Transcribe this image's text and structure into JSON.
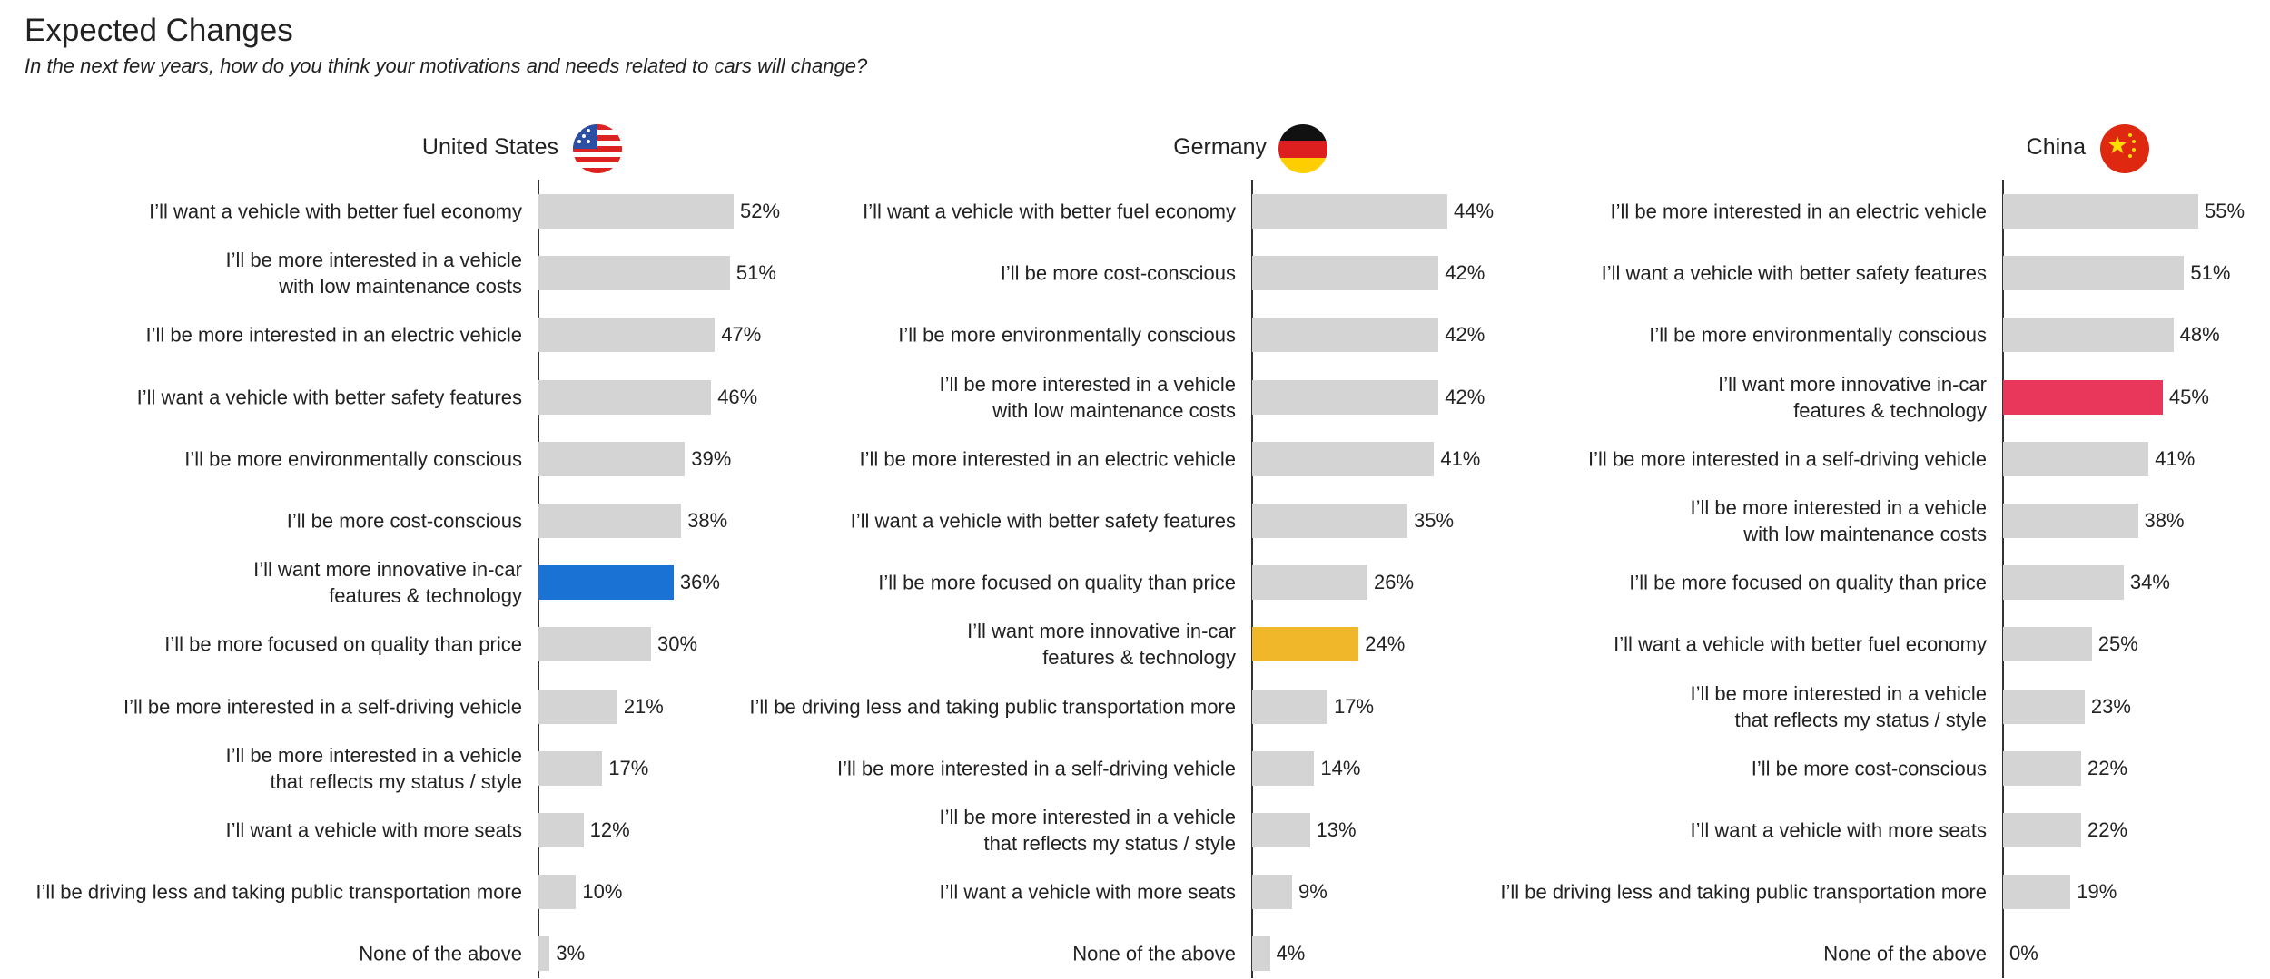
{
  "title": "Expected Changes",
  "subtitle": "In the next few years, how do you think your motivations and needs related to cars will change?",
  "chart_data": [
    {
      "type": "bar",
      "title": "United States",
      "categories": [
        "I’ll want a vehicle with better fuel economy",
        "I’ll be more interested in a vehicle\nwith low maintenance costs",
        "I’ll be more interested in an electric vehicle",
        "I’ll want a vehicle with better safety features",
        "I’ll be more environmentally conscious",
        "I’ll be more cost-conscious",
        "I’ll want more innovative in-car\nfeatures & technology",
        "I’ll be more focused on quality than price",
        "I’ll be more interested in a self-driving vehicle",
        "I’ll be more interested in a vehicle\nthat reflects my status / style",
        "I’ll want a vehicle with more seats",
        "I’ll be driving less and taking public transportation more",
        "None of the above"
      ],
      "values": [
        52,
        51,
        47,
        46,
        39,
        38,
        36,
        30,
        21,
        17,
        12,
        10,
        3
      ],
      "value_labels": [
        "52%",
        "51%",
        "47%",
        "46%",
        "39%",
        "38%",
        "36%",
        "30%",
        "21%",
        "17%",
        "12%",
        "10%",
        "3%"
      ],
      "colors": [
        "#d4d4d4",
        "#d4d4d4",
        "#d4d4d4",
        "#d4d4d4",
        "#d4d4d4",
        "#d4d4d4",
        "#1a73d4",
        "#d4d4d4",
        "#d4d4d4",
        "#d4d4d4",
        "#d4d4d4",
        "#d4d4d4",
        "#d4d4d4"
      ]
    },
    {
      "type": "bar",
      "title": "Germany",
      "categories": [
        "I’ll want a vehicle with better fuel economy",
        "I’ll be more cost-conscious",
        "I’ll be more environmentally conscious",
        "I’ll be more interested in a vehicle\nwith low maintenance costs",
        "I’ll be more interested in an electric vehicle",
        "I’ll want a vehicle with better safety features",
        "I’ll be more focused on quality than price",
        "I’ll want more innovative in-car\nfeatures & technology",
        "I’ll be driving less and taking public transportation more",
        "I’ll be more interested in a self-driving vehicle",
        "I’ll be more interested in a vehicle\nthat reflects my status / style",
        "I’ll want a vehicle with more seats",
        "None of the above"
      ],
      "values": [
        44,
        42,
        42,
        42,
        41,
        35,
        26,
        24,
        17,
        14,
        13,
        9,
        4
      ],
      "value_labels": [
        "44%",
        "42%",
        "42%",
        "42%",
        "41%",
        "35%",
        "26%",
        "24%",
        "17%",
        "14%",
        "13%",
        "9%",
        "4%"
      ],
      "colors": [
        "#d4d4d4",
        "#d4d4d4",
        "#d4d4d4",
        "#d4d4d4",
        "#d4d4d4",
        "#d4d4d4",
        "#d4d4d4",
        "#f0b72a",
        "#d4d4d4",
        "#d4d4d4",
        "#d4d4d4",
        "#d4d4d4",
        "#d4d4d4"
      ]
    },
    {
      "type": "bar",
      "title": "China",
      "categories": [
        "I’ll be more interested in an electric vehicle",
        "I’ll want a vehicle with better safety features",
        "I’ll be more environmentally conscious",
        "I’ll want more innovative in-car\nfeatures & technology",
        "I’ll be more interested in a self-driving vehicle",
        "I’ll be more interested in a vehicle\nwith low maintenance costs",
        "I’ll be more focused on quality than price",
        "I’ll want a vehicle with better fuel economy",
        "I’ll be more interested in a vehicle\nthat reflects my status / style",
        "I’ll be more cost-conscious",
        "I’ll want a vehicle with more seats",
        "I’ll be driving less and taking public transportation more",
        "None of the above"
      ],
      "values": [
        55,
        51,
        48,
        45,
        41,
        38,
        34,
        25,
        23,
        22,
        22,
        19,
        0
      ],
      "value_labels": [
        "55%",
        "51%",
        "48%",
        "45%",
        "41%",
        "38%",
        "34%",
        "25%",
        "23%",
        "22%",
        "22%",
        "19%",
        "0%"
      ],
      "colors": [
        "#d4d4d4",
        "#d4d4d4",
        "#d4d4d4",
        "#e8375a",
        "#d4d4d4",
        "#d4d4d4",
        "#d4d4d4",
        "#d4d4d4",
        "#d4d4d4",
        "#d4d4d4",
        "#d4d4d4",
        "#d4d4d4",
        "#d4d4d4"
      ]
    }
  ]
}
